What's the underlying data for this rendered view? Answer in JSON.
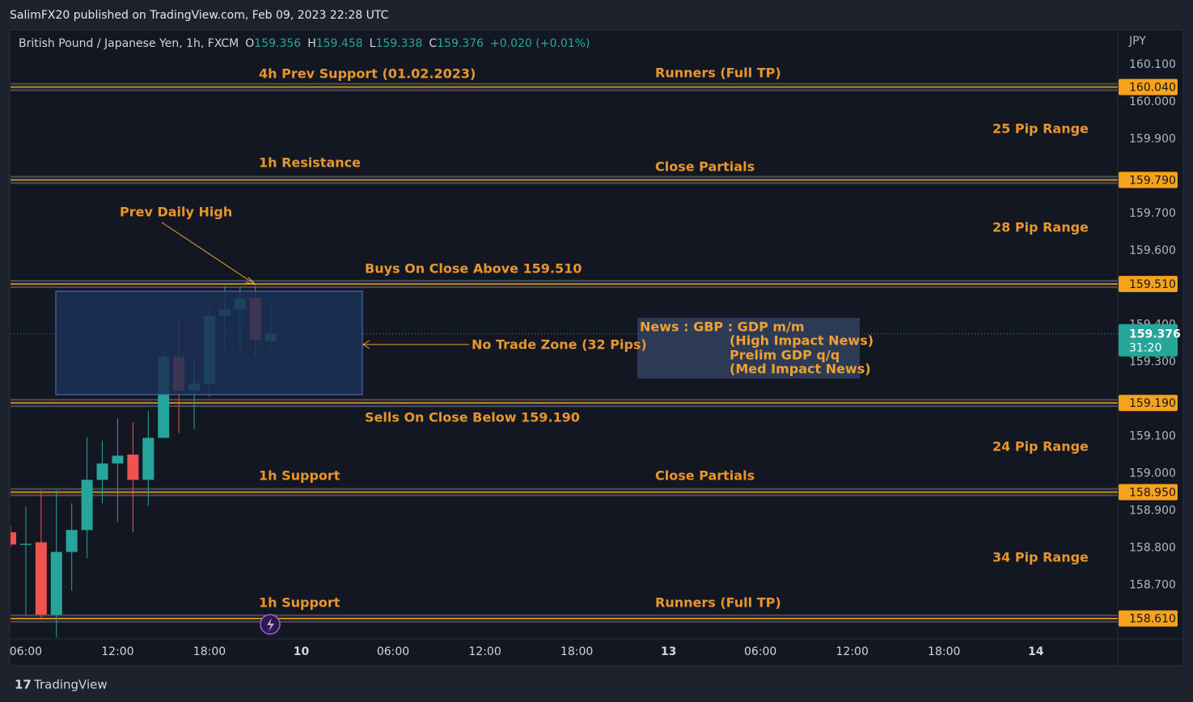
{
  "header": {
    "publisher": "SalimFX20 published on TradingView.com, Feb 09, 2023 22:28 UTC",
    "footer": "TradingView"
  },
  "chart_data": {
    "type": "candlestick",
    "symbol": "British Pound / Japanese Yen, 1h, FXCM",
    "ohlc_letters": {
      "open": "O",
      "high": "H",
      "low": "L",
      "close": "C"
    },
    "change": "+0.020 (+0.01%)",
    "currency": "JPY",
    "countdown": "31:20",
    "up_color": "#26a69a",
    "down_color": "#ef5350",
    "x": [
      5,
      6,
      7,
      8,
      9,
      10,
      11,
      12,
      13,
      14,
      15,
      16,
      17,
      18,
      19,
      20,
      21,
      22
    ],
    "open": [
      158.842,
      158.808,
      158.815,
      158.62,
      158.789,
      158.848,
      158.983,
      159.027,
      159.051,
      158.983,
      159.096,
      159.314,
      159.223,
      159.242,
      159.425,
      159.442,
      159.473,
      159.356
    ],
    "high": [
      158.86,
      158.911,
      158.955,
      158.955,
      158.92,
      159.098,
      159.088,
      159.149,
      159.138,
      159.168,
      159.331,
      159.419,
      159.316,
      159.447,
      159.503,
      159.503,
      159.503,
      159.458
    ],
    "low": [
      158.8,
      158.619,
      158.606,
      158.559,
      158.685,
      158.772,
      158.92,
      158.87,
      158.842,
      158.913,
      159.096,
      159.109,
      159.12,
      159.207,
      159.334,
      159.331,
      159.312,
      159.338
    ],
    "close": [
      158.809,
      158.811,
      158.62,
      158.789,
      158.848,
      158.983,
      159.027,
      159.048,
      158.983,
      159.096,
      159.314,
      159.223,
      159.242,
      159.425,
      159.442,
      159.471,
      159.36,
      159.376
    ],
    "xlim": [
      5,
      77.35
    ],
    "xticks": [
      {
        "value": 6,
        "label": "06:00"
      },
      {
        "value": 12,
        "label": "12:00"
      },
      {
        "value": 18,
        "label": "18:00"
      },
      {
        "value": 24,
        "label": "10"
      },
      {
        "value": 30,
        "label": "06:00"
      },
      {
        "value": 36,
        "label": "12:00"
      },
      {
        "value": 42,
        "label": "18:00"
      },
      {
        "value": 48,
        "label": "13"
      },
      {
        "value": 54,
        "label": "06:00"
      },
      {
        "value": 60,
        "label": "12:00"
      },
      {
        "value": 66,
        "label": "18:00"
      },
      {
        "value": 72,
        "label": "14"
      }
    ],
    "ylim": [
      158.555,
      160.1914
    ],
    "yticks": [
      {
        "value": 160.1,
        "label": "160.100"
      },
      {
        "value": 160.0,
        "label": "160.000"
      },
      {
        "value": 159.9,
        "label": "159.900"
      },
      {
        "value": 159.7,
        "label": "159.700"
      },
      {
        "value": 159.6,
        "label": "159.600"
      },
      {
        "value": 159.4,
        "label": "159.400"
      },
      {
        "value": 159.3,
        "label": "159.300"
      },
      {
        "value": 159.1,
        "label": "159.100"
      },
      {
        "value": 159.0,
        "label": "159.000"
      },
      {
        "value": 158.9,
        "label": "158.900"
      },
      {
        "value": 158.8,
        "label": "158.800"
      },
      {
        "value": 158.7,
        "label": "158.700"
      }
    ],
    "levels": [
      {
        "value": 160.04,
        "label": "160.040"
      },
      {
        "value": 159.79,
        "label": "159.790"
      },
      {
        "value": 159.51,
        "label": "159.510"
      },
      {
        "value": 159.19,
        "label": "159.190"
      },
      {
        "value": 158.95,
        "label": "158.950"
      },
      {
        "value": 158.61,
        "label": "158.610"
      }
    ],
    "level_color": "#f7a21b",
    "annotations": [
      "4h Prev Support (01.02.2023)",
      "Runners (Full TP)",
      "25 Pip Range",
      "1h Resistance",
      "Close Partials",
      "Prev Daily High",
      "28 Pip Range",
      "Buys On Close Above 159.510",
      "No Trade Zone (32 Pips)",
      "Sells On Close Below 159.190",
      "24 Pip Range",
      "1h Support",
      "Close Partials",
      "34 Pip Range",
      "1h Support",
      "Runners (Full TP)"
    ],
    "news": [
      "News : GBP : GDP m/m",
      "(High Impact News)",
      "Prelim GDP q/q",
      "(Med Impact News)"
    ]
  }
}
